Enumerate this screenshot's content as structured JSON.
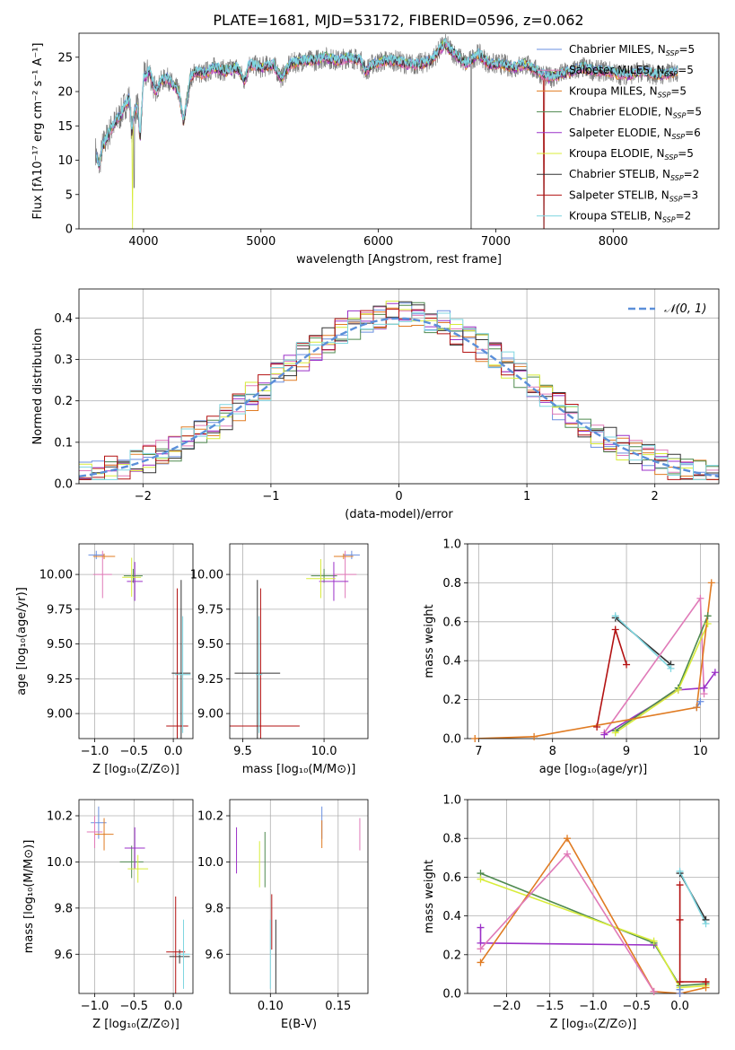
{
  "figure": {
    "title": "PLATE=1681, MJD=53172, FIBERID=0596, z=0.062"
  },
  "colors": {
    "chabrier_miles": "#6a8fe0",
    "salpeter_miles": "#e07ab8",
    "kroupa_miles": "#e07b22",
    "chabrier_elodie": "#4f8a4f",
    "salpeter_elodie": "#9b30c8",
    "kroupa_elodie": "#d8ec3a",
    "chabrier_stelib": "#333333",
    "salpeter_stelib": "#b31212",
    "kroupa_stelib": "#7fd6e0",
    "data_gray": "#7a7a7a",
    "normal_curve": "#5b8fd9",
    "grid": "#b0b0b0"
  },
  "chart_data": [
    {
      "id": "spectrum",
      "type": "line",
      "title": "PLATE=1681, MJD=53172, FIBERID=0596, z=0.062",
      "xlabel": "wavelength [Angstrom, rest frame]",
      "ylabel": "Flux [fλ10⁻¹⁷ erg cm⁻² s⁻¹ A⁻¹]",
      "xlim": [
        3450,
        8900
      ],
      "ylim": [
        0,
        28.5
      ],
      "xticks": [
        4000,
        5000,
        6000,
        7000,
        8000
      ],
      "yticks": [
        0,
        5,
        10,
        15,
        20,
        25
      ],
      "grid": false,
      "legend_position": "right",
      "data_x": [
        3590,
        3620,
        3650,
        3680,
        3720,
        3760,
        3800,
        3840,
        3880,
        3900,
        3920,
        3950,
        3970,
        4000,
        4050,
        4100,
        4150,
        4200,
        4250,
        4300,
        4340,
        4400,
        4450,
        4500,
        4600,
        4700,
        4800,
        4861,
        4900,
        5000,
        5100,
        5175,
        5250,
        5350,
        5450,
        5550,
        5650,
        5750,
        5850,
        5893,
        5950,
        6050,
        6150,
        6250,
        6350,
        6450,
        6563,
        6650,
        6750,
        6850,
        6950,
        7050,
        7150,
        7250,
        7350,
        7450,
        7550,
        7650,
        7750,
        7850,
        7950,
        8050,
        8150,
        8250,
        8350,
        8450,
        8550
      ],
      "data_y": [
        11.5,
        9.0,
        12.0,
        13.0,
        14.5,
        15.5,
        16.5,
        18.0,
        19.0,
        14.0,
        17.0,
        18.0,
        13.0,
        22.0,
        23.0,
        20.0,
        21.5,
        22.0,
        21.0,
        20.0,
        15.5,
        22.0,
        23.0,
        22.5,
        23.5,
        23.0,
        23.5,
        21.5,
        24.0,
        23.5,
        24.0,
        22.0,
        24.0,
        24.5,
        24.5,
        25.0,
        24.5,
        25.0,
        24.5,
        23.0,
        24.0,
        24.5,
        24.5,
        24.0,
        24.0,
        24.5,
        27.0,
        25.5,
        24.0,
        25.5,
        24.0,
        24.0,
        23.5,
        24.0,
        23.0,
        22.0,
        22.5,
        23.0,
        23.5,
        23.0,
        23.0,
        22.5,
        22.5,
        23.0,
        22.5,
        22.5,
        23.0
      ],
      "data_dips": [
        [
          3920,
          6.0
        ],
        [
          6790,
          0.0
        ],
        [
          7410,
          0.0
        ]
      ],
      "model_dips": [
        [
          3905,
          0.0
        ]
      ],
      "series": [
        {
          "key": "chabrier_miles",
          "name": "Chabrier MILES, N",
          "sub": "SSP",
          "suffix": "=5"
        },
        {
          "key": "salpeter_miles",
          "name": "Salpeter MILES, N",
          "sub": "SSP",
          "suffix": "=5"
        },
        {
          "key": "kroupa_miles",
          "name": "Kroupa MILES, N",
          "sub": "SSP",
          "suffix": "=5"
        },
        {
          "key": "chabrier_elodie",
          "name": "Chabrier ELODIE, N",
          "sub": "SSP",
          "suffix": "=5"
        },
        {
          "key": "salpeter_elodie",
          "name": "Salpeter ELODIE, N",
          "sub": "SSP",
          "suffix": "=6"
        },
        {
          "key": "kroupa_elodie",
          "name": "Kroupa ELODIE, N",
          "sub": "SSP",
          "suffix": "=5"
        },
        {
          "key": "chabrier_stelib",
          "name": "Chabrier STELIB, N",
          "sub": "SSP",
          "suffix": "=2"
        },
        {
          "key": "salpeter_stelib",
          "name": "Salpeter STELIB, N",
          "sub": "SSP",
          "suffix": "=3"
        },
        {
          "key": "kroupa_stelib",
          "name": "Kroupa STELIB, N",
          "sub": "SSP",
          "suffix": "=2"
        }
      ]
    },
    {
      "id": "residuals",
      "type": "line",
      "xlabel": "(data-model)/error",
      "ylabel": "Normed distribution",
      "xlim": [
        -2.5,
        2.5
      ],
      "ylim": [
        0,
        0.47
      ],
      "xticks": [
        -2,
        -1,
        0,
        1,
        2
      ],
      "yticks": [
        0.0,
        0.1,
        0.2,
        0.3,
        0.4
      ],
      "grid": true,
      "legend_position": "upper right",
      "legend_label": "𝒩(0, 1)",
      "bin_width": 0.1,
      "bin_start": -2.5
    },
    {
      "id": "age_vs_Z",
      "type": "scatter",
      "xlabel": "Z [log₁₀(Z/Z⊙)]",
      "ylabel": "age  [log₁₀(age/yr)]",
      "xlim": [
        -1.2,
        0.25
      ],
      "ylim": [
        8.82,
        10.22
      ],
      "xticks": [
        -1.0,
        -0.5,
        0.0
      ],
      "yticks": [
        9.0,
        9.25,
        9.5,
        9.75,
        10.0
      ],
      "grid": true,
      "points": [
        {
          "key": "chabrier_miles",
          "x": -0.98,
          "y": 10.14,
          "xe": 0.1,
          "ye": 0.03
        },
        {
          "key": "salpeter_miles",
          "x": -0.9,
          "y": 10.0,
          "xe": 0.12,
          "ye": 0.17
        },
        {
          "key": "kroupa_miles",
          "x": -0.88,
          "y": 10.13,
          "xe": 0.14,
          "ye": 0.02
        },
        {
          "key": "chabrier_elodie",
          "x": -0.51,
          "y": 9.99,
          "xe": 0.12,
          "ye": 0.05
        },
        {
          "key": "salpeter_elodie",
          "x": -0.49,
          "y": 9.95,
          "xe": 0.1,
          "ye": 0.14
        },
        {
          "key": "kroupa_elodie",
          "x": -0.53,
          "y": 9.98,
          "xe": 0.12,
          "ye": 0.14
        },
        {
          "key": "chabrier_stelib",
          "x": 0.1,
          "y": 9.29,
          "xe": 0.12,
          "ye": 0.67
        },
        {
          "key": "salpeter_stelib",
          "x": 0.05,
          "y": 8.91,
          "xe": 0.14,
          "ye": 0.99
        },
        {
          "key": "kroupa_stelib",
          "x": 0.12,
          "y": 9.28,
          "xe": 0.1,
          "ye": 0.42
        }
      ]
    },
    {
      "id": "age_vs_mass",
      "type": "scatter",
      "xlabel": "mass [log₁₀(M/M⊙)]",
      "ylabel": "",
      "xlim": [
        9.42,
        10.27
      ],
      "ylim": [
        8.82,
        10.22
      ],
      "xticks": [
        9.5,
        10.0
      ],
      "yticks": [
        9.0,
        9.25,
        9.5,
        9.75,
        10.0
      ],
      "grid": true,
      "points": [
        {
          "key": "chabrier_miles",
          "x": 10.17,
          "y": 10.14,
          "xe": 0.05,
          "ye": 0.03
        },
        {
          "key": "salpeter_miles",
          "x": 10.13,
          "y": 10.0,
          "xe": 0.07,
          "ye": 0.17
        },
        {
          "key": "kroupa_miles",
          "x": 10.12,
          "y": 10.13,
          "xe": 0.06,
          "ye": 0.02
        },
        {
          "key": "chabrier_elodie",
          "x": 10.0,
          "y": 9.99,
          "xe": 0.08,
          "ye": 0.05
        },
        {
          "key": "salpeter_elodie",
          "x": 10.06,
          "y": 9.95,
          "xe": 0.09,
          "ye": 0.14
        },
        {
          "key": "kroupa_elodie",
          "x": 9.98,
          "y": 9.97,
          "xe": 0.09,
          "ye": 0.14
        },
        {
          "key": "chabrier_stelib",
          "x": 9.59,
          "y": 9.29,
          "xe": 0.14,
          "ye": 0.67
        },
        {
          "key": "salpeter_stelib",
          "x": 9.61,
          "y": 8.91,
          "xe": 0.24,
          "ye": 0.99
        },
        {
          "key": "kroupa_stelib",
          "x": 9.6,
          "y": 9.28,
          "xe": 0.02,
          "ye": 0.42
        }
      ]
    },
    {
      "id": "massweight_vs_age",
      "type": "line",
      "xlabel": "age  [log₁₀(age/yr)]",
      "ylabel": "mass weight",
      "xlim": [
        6.85,
        10.25
      ],
      "ylim": [
        0,
        1.0
      ],
      "xticks": [
        7,
        8,
        9,
        10
      ],
      "yticks": [
        0.0,
        0.2,
        0.4,
        0.6,
        0.8,
        1.0
      ],
      "grid": true,
      "series": [
        {
          "key": "salpeter_stelib",
          "x": [
            8.6,
            8.85,
            9.0
          ],
          "y": [
            0.06,
            0.56,
            0.38
          ]
        },
        {
          "key": "chabrier_stelib",
          "x": [
            8.85,
            9.6
          ],
          "y": [
            0.62,
            0.38
          ]
        },
        {
          "key": "kroupa_stelib",
          "x": [
            8.85,
            9.6
          ],
          "y": [
            0.63,
            0.36
          ]
        },
        {
          "key": "salpeter_miles",
          "x": [
            8.7,
            10.0,
            10.05
          ],
          "y": [
            0.03,
            0.72,
            0.23
          ]
        },
        {
          "key": "salpeter_elodie",
          "x": [
            8.7,
            9.7,
            10.05,
            10.2
          ],
          "y": [
            0.02,
            0.25,
            0.26,
            0.34
          ]
        },
        {
          "key": "chabrier_elodie",
          "x": [
            8.85,
            9.7,
            10.1
          ],
          "y": [
            0.04,
            0.26,
            0.63
          ]
        },
        {
          "key": "kroupa_elodie",
          "x": [
            8.85,
            9.7,
            10.1
          ],
          "y": [
            0.03,
            0.25,
            0.59
          ]
        },
        {
          "key": "chabrier_miles",
          "x": [
            9.95,
            10.0
          ],
          "y": [
            0.16,
            0.19
          ]
        },
        {
          "key": "kroupa_miles",
          "x": [
            6.95,
            7.75,
            9.95,
            10.15
          ],
          "y": [
            0.0,
            0.01,
            0.16,
            0.8
          ]
        }
      ]
    },
    {
      "id": "mass_vs_Z",
      "type": "scatter",
      "xlabel": "Z [log₁₀(Z/Z⊙)]",
      "ylabel": "mass [log₁₀(M/M⊙)]",
      "xlim": [
        -1.2,
        0.25
      ],
      "ylim": [
        9.43,
        10.27
      ],
      "xticks": [
        -1.0,
        -0.5,
        0.0
      ],
      "yticks": [
        9.6,
        9.8,
        10.0,
        10.2
      ],
      "grid": true,
      "points": [
        {
          "key": "chabrier_miles",
          "x": -0.95,
          "y": 10.17,
          "xe": 0.1,
          "ye": 0.07
        },
        {
          "key": "salpeter_miles",
          "x": -1.0,
          "y": 10.13,
          "xe": 0.1,
          "ye": 0.07
        },
        {
          "key": "kroupa_miles",
          "x": -0.88,
          "y": 10.12,
          "xe": 0.12,
          "ye": 0.07
        },
        {
          "key": "chabrier_elodie",
          "x": -0.53,
          "y": 10.0,
          "xe": 0.15,
          "ye": 0.07
        },
        {
          "key": "salpeter_elodie",
          "x": -0.49,
          "y": 10.06,
          "xe": 0.13,
          "ye": 0.09
        },
        {
          "key": "kroupa_elodie",
          "x": -0.45,
          "y": 9.97,
          "xe": 0.13,
          "ye": 0.06
        },
        {
          "key": "chabrier_stelib",
          "x": 0.08,
          "y": 9.59,
          "xe": 0.13,
          "ye": 0.03
        },
        {
          "key": "salpeter_stelib",
          "x": 0.03,
          "y": 9.61,
          "xe": 0.12,
          "ye": 0.24
        },
        {
          "key": "kroupa_stelib",
          "x": 0.13,
          "y": 9.6,
          "xe": 0.08,
          "ye": 0.15
        }
      ]
    },
    {
      "id": "mass_vs_ebv",
      "type": "scatter",
      "xlabel": "E(B-V)",
      "ylabel": "",
      "xlim": [
        0.07,
        0.172
      ],
      "ylim": [
        9.43,
        10.27
      ],
      "xticks": [
        0.1,
        0.15
      ],
      "yticks": [
        9.6,
        9.8,
        10.0,
        10.2
      ],
      "grid": true,
      "points": [
        {
          "key": "chabrier_miles",
          "x": 0.138,
          "y": 10.17,
          "xe": 0.0,
          "ye": 0.07
        },
        {
          "key": "salpeter_miles",
          "x": 0.166,
          "y": 10.12,
          "xe": 0.0,
          "ye": 0.07
        },
        {
          "key": "kroupa_miles",
          "x": 0.138,
          "y": 10.12,
          "xe": 0.0,
          "ye": 0.06
        },
        {
          "key": "chabrier_elodie",
          "x": 0.096,
          "y": 10.01,
          "xe": 0.0,
          "ye": 0.12
        },
        {
          "key": "salpeter_elodie",
          "x": 0.075,
          "y": 10.05,
          "xe": 0.0,
          "ye": 0.1
        },
        {
          "key": "kroupa_elodie",
          "x": 0.092,
          "y": 9.99,
          "xe": 0.0,
          "ye": 0.1
        },
        {
          "key": "chabrier_stelib",
          "x": 0.104,
          "y": 9.59,
          "xe": 0.0,
          "ye": 0.16
        },
        {
          "key": "salpeter_stelib",
          "x": 0.101,
          "y": 9.74,
          "xe": 0.0,
          "ye": 0.12
        },
        {
          "key": "kroupa_stelib",
          "x": 0.1,
          "y": 9.6,
          "xe": 0.0,
          "ye": 0.15
        }
      ]
    },
    {
      "id": "massweight_vs_Z",
      "type": "line",
      "xlabel": "Z [log₁₀(Z/Z⊙)]",
      "ylabel": "mass weight",
      "xlim": [
        -2.45,
        0.45
      ],
      "ylim": [
        0,
        1.0
      ],
      "xticks": [
        -2.0,
        -1.5,
        -1.0,
        -0.5,
        0.0
      ],
      "yticks": [
        0.0,
        0.2,
        0.4,
        0.6,
        0.8,
        1.0
      ],
      "grid": true,
      "series": [
        {
          "key": "salpeter_elodie",
          "x": [
            -2.3,
            -2.3,
            -0.3
          ],
          "y": [
            0.34,
            0.26,
            0.25
          ]
        },
        {
          "key": "chabrier_elodie",
          "x": [
            -2.3,
            -0.3,
            0.0,
            0.3
          ],
          "y": [
            0.62,
            0.26,
            0.04,
            0.05
          ]
        },
        {
          "key": "kroupa_elodie",
          "x": [
            -2.3,
            -0.3,
            0.0,
            0.3
          ],
          "y": [
            0.59,
            0.27,
            0.03,
            0.04
          ]
        },
        {
          "key": "kroupa_miles",
          "x": [
            -2.3,
            -1.3,
            -0.3,
            0.0,
            0.3
          ],
          "y": [
            0.16,
            0.8,
            0.01,
            0.0,
            0.03
          ]
        },
        {
          "key": "salpeter_miles",
          "x": [
            -2.3,
            -1.3,
            -0.3
          ],
          "y": [
            0.23,
            0.72,
            0.01
          ]
        },
        {
          "key": "salpeter_stelib",
          "x": [
            0.0,
            0.0,
            0.0,
            0.3,
            0.3
          ],
          "y": [
            0.38,
            0.56,
            0.06,
            0.06,
            0.06
          ]
        },
        {
          "key": "chabrier_stelib",
          "x": [
            0.0,
            0.3
          ],
          "y": [
            0.62,
            0.38
          ]
        },
        {
          "key": "kroupa_stelib",
          "x": [
            0.0,
            0.3
          ],
          "y": [
            0.63,
            0.36
          ]
        },
        {
          "key": "chabrier_miles",
          "x": [
            0.0,
            0.0
          ],
          "y": [
            0.0,
            0.02
          ]
        }
      ]
    }
  ]
}
